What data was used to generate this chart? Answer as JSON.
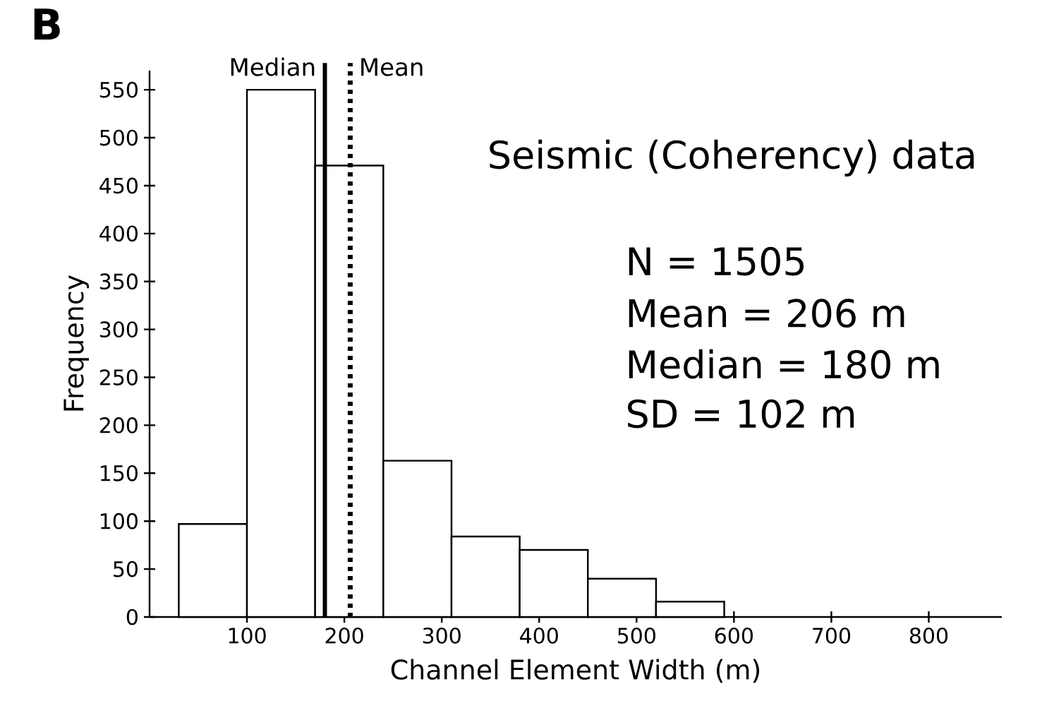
{
  "chart_data": {
    "type": "histogram",
    "xlabel": "Channel Element Width (m)",
    "ylabel": "Frequency",
    "bins": [
      30,
      100,
      170,
      240,
      310,
      380,
      450,
      520,
      590
    ],
    "values": [
      97,
      550,
      471,
      163,
      84,
      70,
      40,
      16
    ],
    "color": "#ffffff",
    "xlim": [
      0,
      875
    ],
    "xticks": [
      100,
      200,
      300,
      400,
      500,
      600,
      700,
      800
    ],
    "ylim": [
      0,
      570
    ],
    "yticks": [
      0,
      50,
      100,
      150,
      200,
      250,
      300,
      350,
      400,
      450,
      500,
      550
    ],
    "grid": false,
    "ref_lines": [
      {
        "axis": "x",
        "value": 180,
        "label": "Median",
        "color": "#000000",
        "line_style": "solid"
      },
      {
        "axis": "x",
        "value": 206,
        "label": "Mean",
        "color": "#000000",
        "line_style": "dotted"
      }
    ],
    "annotations": [
      "B",
      "Seismic (Coherency) data",
      "N = 1505",
      "Mean = 206 m",
      "Median = 180 m",
      "SD = 102 m"
    ]
  }
}
